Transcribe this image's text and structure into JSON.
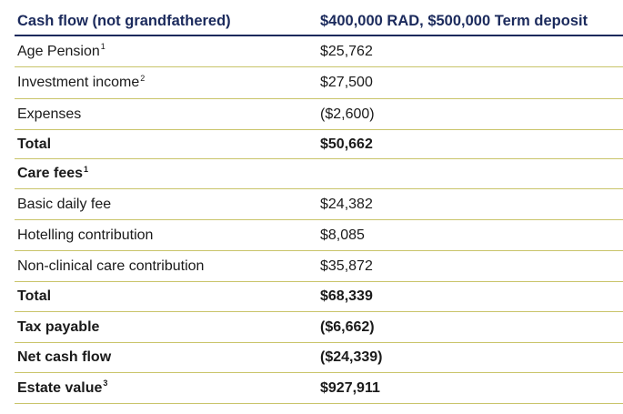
{
  "header": {
    "col1": "Cash flow (not grandfathered)",
    "col2": "$400,000 RAD, $500,000 Term deposit"
  },
  "rows": [
    {
      "label": "Age Pension",
      "sup": "1",
      "value": "$25,762",
      "bold": false
    },
    {
      "label": "Investment income",
      "sup": "2",
      "value": "$27,500",
      "bold": false
    },
    {
      "label": "Expenses",
      "sup": "",
      "value": "($2,600)",
      "bold": false
    },
    {
      "label": "Total",
      "sup": "",
      "value": "$50,662",
      "bold": true
    },
    {
      "label": "Care fees",
      "sup": "1",
      "value": "",
      "bold": true
    },
    {
      "label": "Basic daily fee",
      "sup": "",
      "value": "$24,382",
      "bold": false
    },
    {
      "label": "Hotelling contribution",
      "sup": "",
      "value": "$8,085",
      "bold": false
    },
    {
      "label": "Non-clinical care contribution",
      "sup": "",
      "value": "$35,872",
      "bold": false
    },
    {
      "label": "Total",
      "sup": "",
      "value": "$68,339",
      "bold": true
    },
    {
      "label": "Tax payable",
      "sup": "",
      "value": "($6,662)",
      "bold": true
    },
    {
      "label": "Net cash flow",
      "sup": "",
      "value": "($24,339)",
      "bold": true
    },
    {
      "label": "Estate value",
      "sup": "3",
      "value": "$927,911",
      "bold": true
    }
  ],
  "colors": {
    "header_text": "#1b2a5c",
    "header_rule": "#1b2a5c",
    "row_rule": "#c9c46a"
  }
}
